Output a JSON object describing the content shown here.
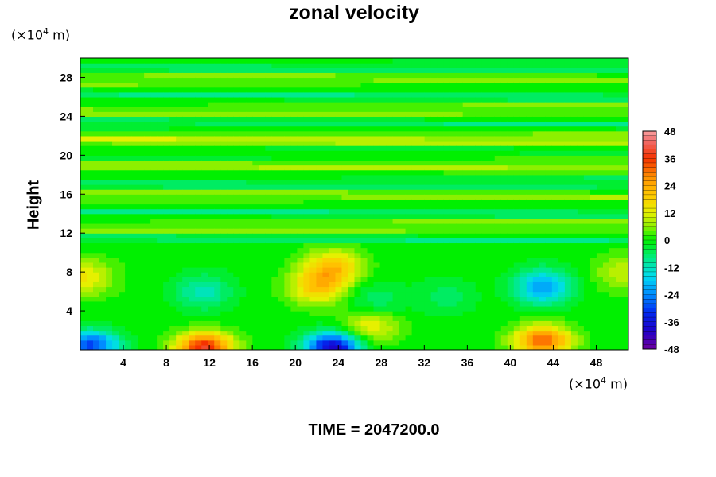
{
  "chart_data": {
    "type": "heatmap",
    "title": "zonal velocity",
    "ylabel": "Height",
    "xlabel": "",
    "x_unit_prefix": "(×10",
    "x_unit_exp": "4",
    "x_unit_suffix": " m)",
    "y_unit_prefix": "(×10",
    "y_unit_exp": "4",
    "y_unit_suffix": " m)",
    "xlim": [
      0,
      51
    ],
    "ylim": [
      0,
      30
    ],
    "x_ticks": [
      "4",
      "8",
      "12",
      "16",
      "20",
      "24",
      "28",
      "32",
      "36",
      "40",
      "44",
      "48"
    ],
    "y_ticks": [
      "4",
      "8",
      "12",
      "16",
      "20",
      "24",
      "28"
    ],
    "colorbar": {
      "min": -48,
      "max": 48,
      "labels": [
        "48",
        "36",
        "24",
        "12",
        "0",
        "-12",
        "-24",
        "-36",
        "-48"
      ]
    },
    "features": [
      {
        "x": 11.5,
        "y": 0.3,
        "value": 38
      },
      {
        "x": 23.5,
        "y": 0.3,
        "value": -40
      },
      {
        "x": 43.0,
        "y": 1.0,
        "value": 32
      },
      {
        "x": 1.0,
        "y": 0.5,
        "value": -30
      },
      {
        "x": 43.0,
        "y": 6.5,
        "value": -22
      },
      {
        "x": 11.5,
        "y": 6.0,
        "value": -12
      },
      {
        "x": 22.0,
        "y": 6.5,
        "value": 18
      },
      {
        "x": 23.5,
        "y": 8.5,
        "value": 20
      },
      {
        "x": 0.5,
        "y": 7.5,
        "value": 14
      },
      {
        "x": 27.5,
        "y": 5.0,
        "value": -8
      },
      {
        "x": 27.0,
        "y": 2.5,
        "value": 14
      },
      {
        "x": 34.0,
        "y": 5.5,
        "value": -6
      },
      {
        "x": 50.5,
        "y": 8.0,
        "value": 10
      }
    ]
  },
  "footer": {
    "time_label": "TIME = 2047200.0"
  }
}
